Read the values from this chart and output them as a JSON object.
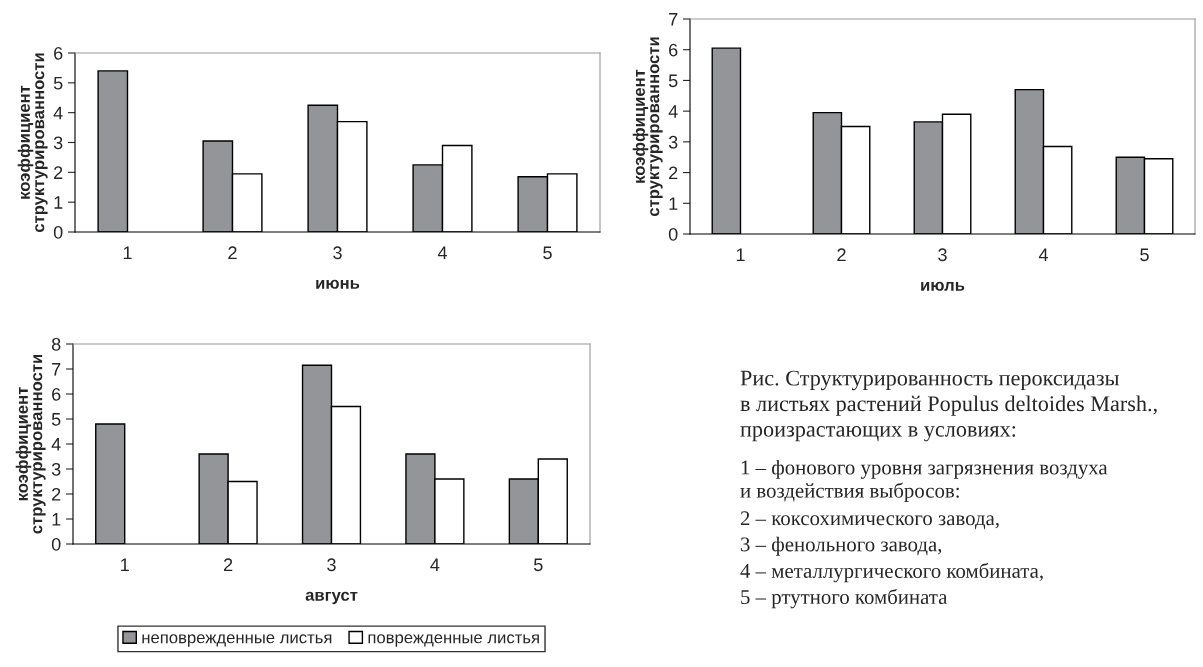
{
  "chart_data": [
    {
      "type": "bar",
      "xlabel": "июнь",
      "ylabel": "коэффициент\nструктурированности",
      "categories": [
        "1",
        "2",
        "3",
        "4",
        "5"
      ],
      "ylim": [
        0,
        6
      ],
      "yticks": [
        0,
        1,
        2,
        3,
        4,
        5,
        6
      ],
      "legend": false,
      "series": [
        {
          "color": "#939598",
          "values": [
            5.4,
            3.05,
            4.25,
            2.25,
            1.85
          ]
        },
        {
          "color": "#ffffff",
          "values": [
            null,
            1.95,
            3.7,
            2.9,
            1.95
          ]
        }
      ]
    },
    {
      "type": "bar",
      "xlabel": "июль",
      "ylabel": "коэффициент\nструктурированности",
      "categories": [
        "1",
        "2",
        "3",
        "4",
        "5"
      ],
      "ylim": [
        0,
        7
      ],
      "yticks": [
        0,
        1,
        2,
        3,
        4,
        5,
        6,
        7
      ],
      "legend": false,
      "series": [
        {
          "color": "#939598",
          "values": [
            6.05,
            3.95,
            3.65,
            4.7,
            2.5
          ]
        },
        {
          "color": "#ffffff",
          "values": [
            null,
            3.5,
            3.9,
            2.85,
            2.45
          ]
        }
      ]
    },
    {
      "type": "bar",
      "xlabel": "август",
      "ylabel": "коэффициент\nструктурированности",
      "categories": [
        "1",
        "2",
        "3",
        "4",
        "5"
      ],
      "ylim": [
        0,
        8
      ],
      "yticks": [
        0,
        1,
        2,
        3,
        4,
        5,
        6,
        7,
        8
      ],
      "legend": "bottom",
      "series": [
        {
          "name": "неповрежденные листья",
          "color": "#939598",
          "values": [
            4.8,
            3.6,
            7.15,
            3.6,
            2.6
          ]
        },
        {
          "name": "поврежденные листья",
          "color": "#ffffff",
          "values": [
            null,
            2.5,
            5.5,
            2.6,
            3.4
          ]
        }
      ]
    },
    {
      "type": "other",
      "title": "Рис. Структурированность пероксидазы\nв листьях растений Populus deltoides Marsh.,\nпроизрастающих в условиях:",
      "annotations": [
        "1 – фонового уровня загрязнения воздуха\nи воздействия выбросов:",
        "2 – коксохимического завода,",
        "3 – фенольного завода,",
        "4 – металлургического комбината,",
        "5 – ртутного комбината"
      ]
    }
  ]
}
